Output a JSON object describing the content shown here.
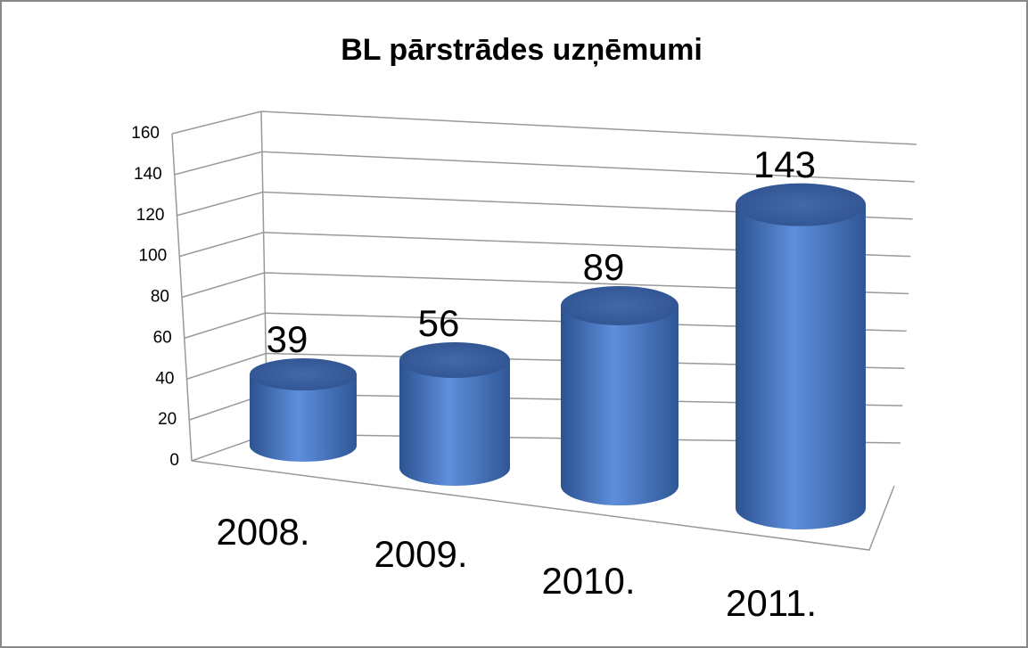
{
  "chart_data": {
    "type": "bar3d",
    "title": "BL pārstrādes uzņēmumi",
    "categories": [
      "2008.",
      "2009.",
      "2010.",
      "2011."
    ],
    "values": [
      39,
      56,
      89,
      143
    ],
    "color": "#4a78c4",
    "ylim": [
      0,
      160
    ],
    "yticks": [
      0,
      20,
      40,
      60,
      80,
      100,
      120,
      140,
      160
    ],
    "grid": true
  }
}
